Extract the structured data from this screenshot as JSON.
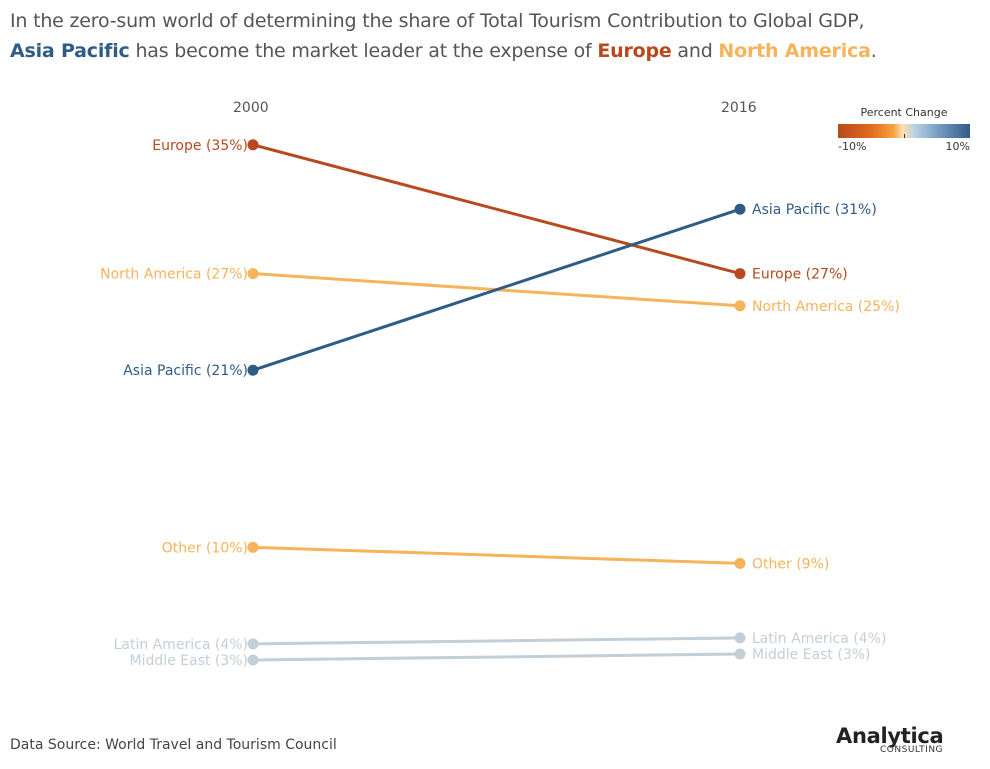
{
  "headline": {
    "line1": "In the zero-sum world of determining the share of Total Tourism Contribution to Global GDP,",
    "hl_asia": "Asia Pacific",
    "mid": " has become the market leader at the expense of ",
    "hl_europe": "Europe",
    "and": " and ",
    "hl_na": "North America",
    "end": "."
  },
  "legend": {
    "title": "Percent Change",
    "min_label": "-10%",
    "max_label": "10%"
  },
  "footer": {
    "source": "Data Source: World Travel and Tourism Council"
  },
  "logo": {
    "name": "Analytica",
    "sub": "CONSULTING"
  },
  "colors": {
    "europe": "#b7491d",
    "north_america": "#f5b35a",
    "asia_pacific": "#2f5b87",
    "other": "#f5b35a",
    "grey": "#c3ced6",
    "text": "#555555"
  },
  "chart_data": {
    "type": "line",
    "subtype": "slope",
    "x": [
      "2000",
      "2016"
    ],
    "y_unit": "%",
    "series": [
      {
        "name": "Europe",
        "values": [
          35,
          27
        ],
        "labels": [
          "Europe (35%)",
          "Europe (27%)"
        ],
        "color": "#b7491d"
      },
      {
        "name": "North America",
        "values": [
          27,
          25
        ],
        "labels": [
          "North America (27%)",
          "North America (25%)"
        ],
        "color": "#f5b35a"
      },
      {
        "name": "Asia Pacific",
        "values": [
          21,
          31
        ],
        "labels": [
          "Asia Pacific (21%)",
          "Asia Pacific (31%)"
        ],
        "color": "#2f5b87"
      },
      {
        "name": "Other",
        "values": [
          10,
          9
        ],
        "labels": [
          "Other (10%)",
          "Other (9%)"
        ],
        "color": "#f5b35a"
      },
      {
        "name": "Latin America",
        "values": [
          4,
          4
        ],
        "labels": [
          "Latin America (4%)",
          "Latin America (4%)"
        ],
        "color": "#c3ced6"
      },
      {
        "name": "Middle East",
        "values": [
          3,
          3
        ],
        "labels": [
          "Middle East (3%)",
          "Middle East (3%)"
        ],
        "color": "#c3ced6"
      }
    ]
  }
}
